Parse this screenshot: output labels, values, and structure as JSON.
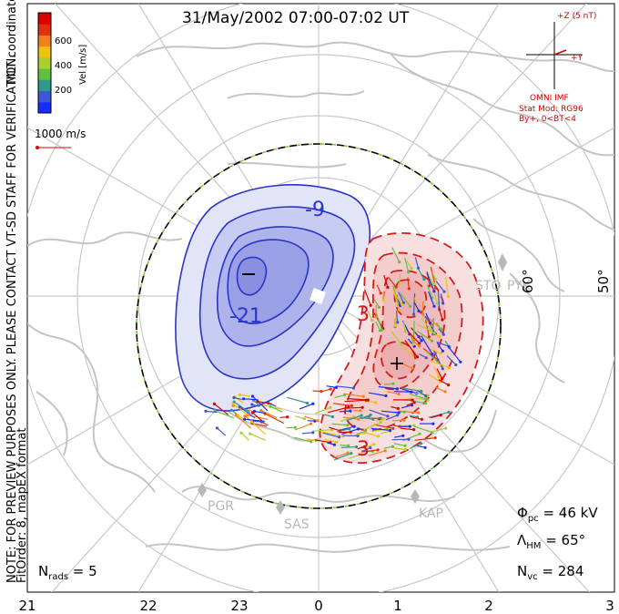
{
  "title": "31/May/2002 07:00-07:02 UT",
  "side_note": {
    "line1": "NOTE: FOR PREVIEW PURPOSES ONLY. PLEASE CONTACT VT-SD STAFF FOR VERIFICATION.",
    "line2": "FitOrder: 8, mapEX format"
  },
  "coord_label": "MLT coordinates",
  "colorbar": {
    "label": "Vel [m/s]",
    "ticks": [
      "600",
      "400",
      "200"
    ],
    "colors": [
      "#1a2cff",
      "#3b58d6",
      "#2f9a8a",
      "#60c040",
      "#a8d030",
      "#f0c010",
      "#f08020",
      "#e03010",
      "#d80000"
    ]
  },
  "scale_vector": {
    "label": "1000 m/s",
    "color": "#e00000"
  },
  "imf_panel": {
    "z_label": "+Z (5 nT)",
    "y_label": "+Y",
    "source": "OMNI IMF",
    "model": "Stat Mod: RG96",
    "condition": "By+, 0<BT<4",
    "color": "#d40000"
  },
  "lat_labels": [
    "60°",
    "50°"
  ],
  "stations": [
    "STO",
    "PYK",
    "PGR",
    "SAS",
    "KAP"
  ],
  "contour_labels": [
    "-9",
    "-21",
    "3",
    "3"
  ],
  "stats": {
    "phi_pc": "46 kV",
    "lambda_hm": "65°",
    "n_vc": "284",
    "n_rads": "5"
  },
  "stat_symbols": {
    "phi": "Φ",
    "phi_sub": "pc",
    "lambda": "Λ",
    "lambda_sub": "HM",
    "n": "N",
    "n_vc_sub": "vc",
    "n_rads_sub": "rads"
  },
  "x_ticks": [
    "21",
    "22",
    "23",
    "0",
    "1",
    "2",
    "3"
  ],
  "colors": {
    "negative_cell": "#2a34c8",
    "positive_cell": "#d41c1c",
    "hmb": "#7ec83c",
    "grid": "#c8c8c8",
    "coast": "#c4c4c4"
  }
}
